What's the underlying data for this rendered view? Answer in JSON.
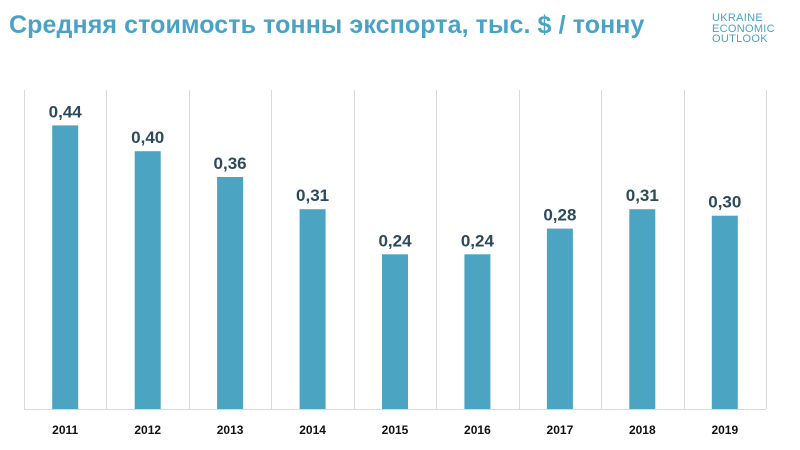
{
  "title": "Средняя стоимость тонны экспорта, тыс. $ / тонну",
  "logo": {
    "lines": [
      "UKRAINE",
      "ECONOMIC",
      "OUTLOOK"
    ]
  },
  "colors": {
    "bar": "#4ca4c3",
    "title": "#4aa3c4",
    "value_label": "#2b4a5c"
  },
  "chart_data": {
    "type": "bar",
    "title": "Средняя стоимость тонны экспорта, тыс. $ / тонну",
    "categories": [
      "2011",
      "2012",
      "2013",
      "2014",
      "2015",
      "2016",
      "2017",
      "2018",
      "2019"
    ],
    "values": [
      0.44,
      0.4,
      0.36,
      0.31,
      0.24,
      0.24,
      0.28,
      0.31,
      0.3
    ],
    "value_labels": [
      "0,44",
      "0,40",
      "0,36",
      "0,31",
      "0,24",
      "0,24",
      "0,28",
      "0,31",
      "0,30"
    ],
    "ylim": [
      0,
      0.5
    ],
    "xlabel": "",
    "ylabel": "",
    "grid": true,
    "legend": "none"
  }
}
